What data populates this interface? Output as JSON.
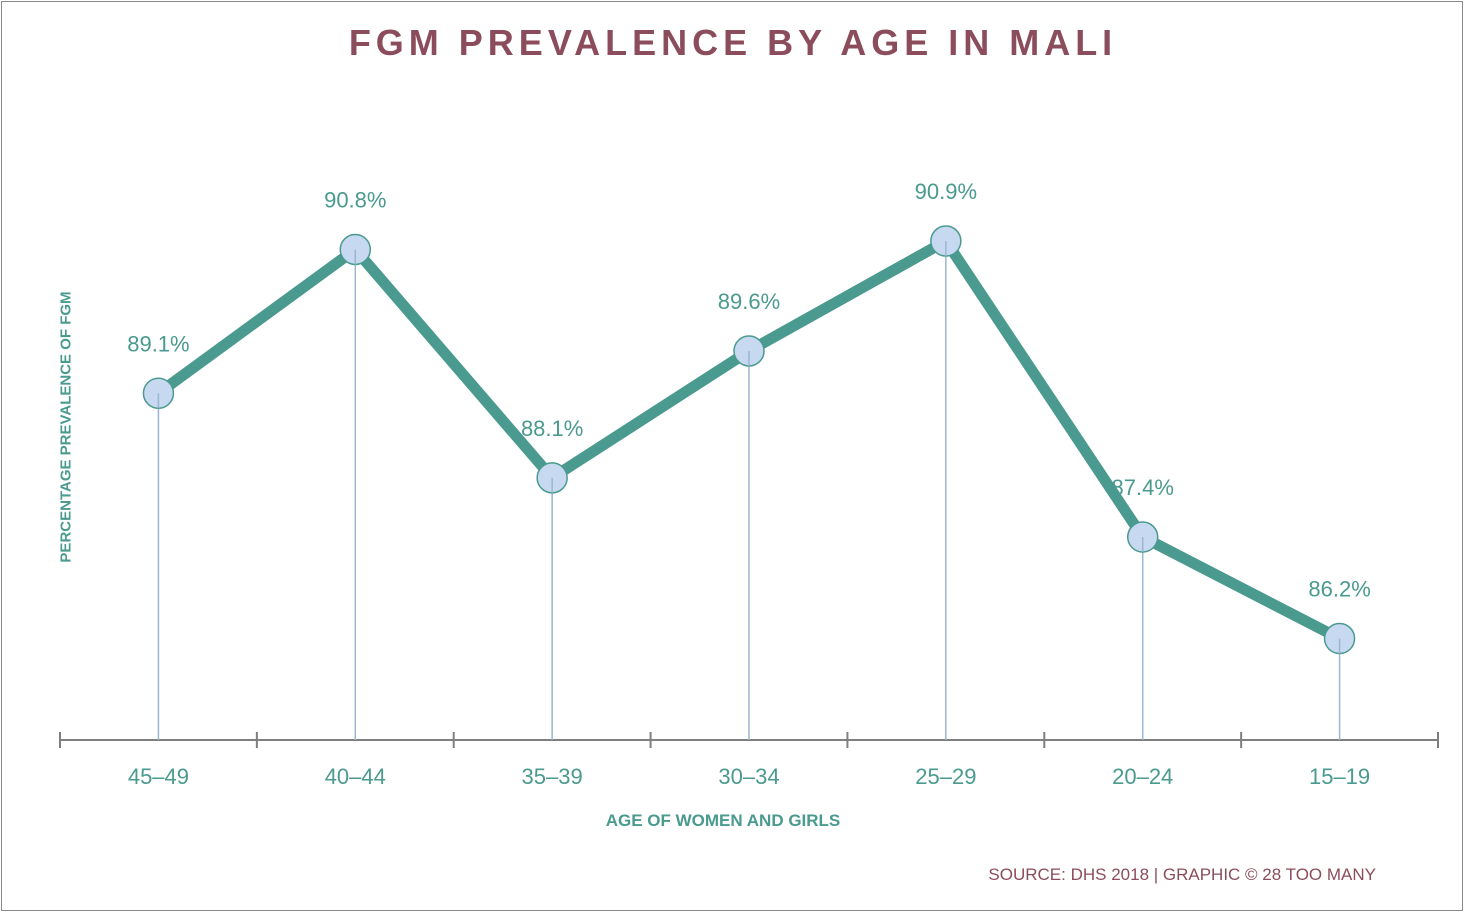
{
  "chart_data": {
    "type": "line",
    "title": "FGM PREVALENCE BY AGE IN MALI",
    "xlabel": "AGE OF WOMEN AND GIRLS",
    "ylabel": "PERCENTAGE PREVALENCE OF FGM",
    "categories": [
      "45–49",
      "40–44",
      "35–39",
      "30–34",
      "25–29",
      "20–24",
      "15–19"
    ],
    "values": [
      89.1,
      90.8,
      88.1,
      89.6,
      90.9,
      87.4,
      86.2
    ],
    "labels": [
      "89.1%",
      "90.8%",
      "88.1%",
      "89.6%",
      "90.9%",
      "87.4%",
      "86.2%"
    ],
    "ylim": [
      85,
      92
    ],
    "grid": false,
    "legend": "none",
    "source": "SOURCE: DHS 2018 | GRAPHIC © 28 TOO MANY"
  },
  "colors": {
    "line": "#4a9a8f",
    "marker_fill": "#c6d9f1",
    "drop_line": "#9ab6d2",
    "title": "#8b4d5b",
    "axis": "#7f7f7f"
  }
}
